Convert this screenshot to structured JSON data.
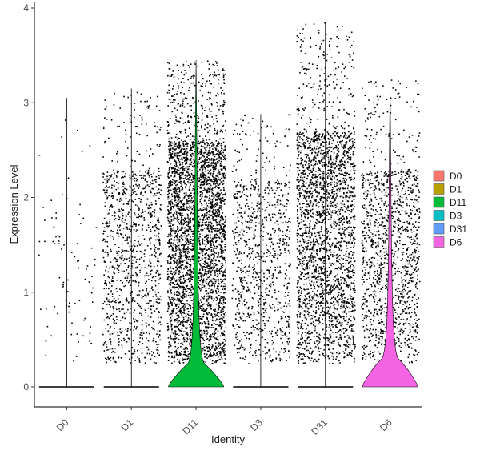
{
  "chart_data": {
    "type": "violin",
    "xlabel": "Identity",
    "ylabel": "Expression Level",
    "ylim": [
      -0.22,
      4.05
    ],
    "yticks": [
      0,
      1,
      2,
      3,
      4
    ],
    "grid": false,
    "legend_position": "right",
    "categories": [
      "D0",
      "D1",
      "D11",
      "D3",
      "D31",
      "D6"
    ],
    "series": [
      {
        "name": "D0",
        "color": "#F8766D",
        "max": 3.05,
        "points": 85,
        "dense_top": 2.0,
        "violin_width": 0.0,
        "violin_height": 0.0
      },
      {
        "name": "D1",
        "color": "#B79F00",
        "max": 3.15,
        "points": 1050,
        "dense_top": 2.3,
        "violin_width": 0.0,
        "violin_height": 0.0
      },
      {
        "name": "D11",
        "color": "#00BA38",
        "max": 3.45,
        "points": 3600,
        "dense_top": 2.6,
        "violin_width": 1.0,
        "violin_height": 0.25
      },
      {
        "name": "D3",
        "color": "#00BFC4",
        "max": 2.88,
        "points": 900,
        "dense_top": 2.2,
        "violin_width": 0.0,
        "violin_height": 0.0
      },
      {
        "name": "D31",
        "color": "#619CFF",
        "max": 3.85,
        "points": 2600,
        "dense_top": 2.7,
        "violin_width": 0.0,
        "violin_height": 0.0
      },
      {
        "name": "D6",
        "color": "#F564E3",
        "max": 3.25,
        "points": 1350,
        "dense_top": 2.3,
        "violin_width": 1.0,
        "violin_height": 0.3
      }
    ]
  }
}
